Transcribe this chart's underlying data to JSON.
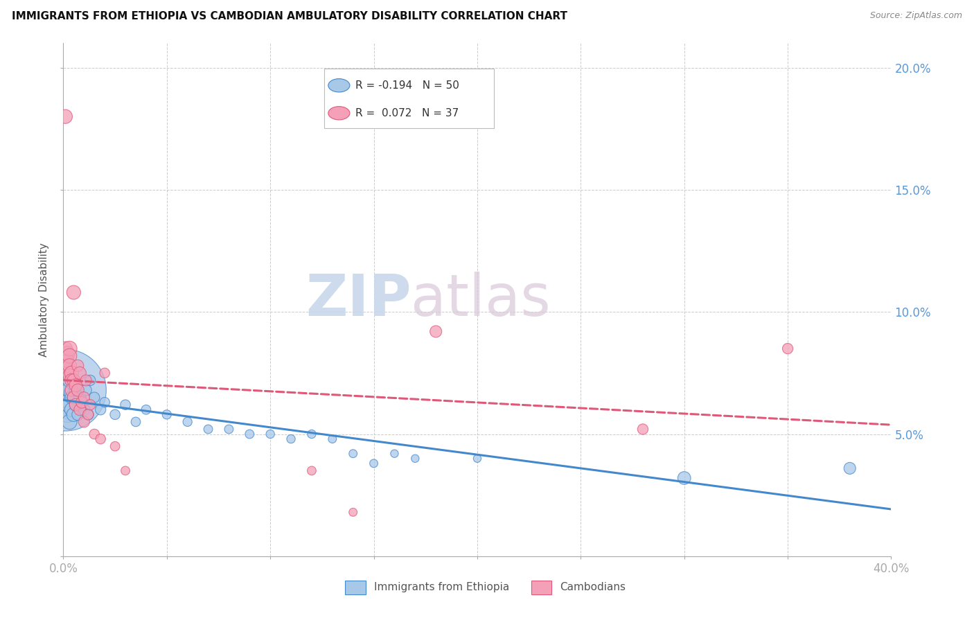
{
  "title": "IMMIGRANTS FROM ETHIOPIA VS CAMBODIAN AMBULATORY DISABILITY CORRELATION CHART",
  "source": "Source: ZipAtlas.com",
  "ylabel": "Ambulatory Disability",
  "xlim": [
    0.0,
    0.4
  ],
  "ylim": [
    0.0,
    0.21
  ],
  "color_blue": "#a8c8e8",
  "color_pink": "#f4a0b8",
  "color_blue_line": "#4488cc",
  "color_pink_line": "#e05878",
  "watermark_zip": "ZIP",
  "watermark_atlas": "atlas",
  "ethiopia_x": [
    0.001,
    0.001,
    0.001,
    0.002,
    0.002,
    0.002,
    0.002,
    0.002,
    0.003,
    0.003,
    0.003,
    0.003,
    0.004,
    0.004,
    0.004,
    0.005,
    0.005,
    0.005,
    0.006,
    0.006,
    0.007,
    0.008,
    0.009,
    0.01,
    0.011,
    0.012,
    0.013,
    0.015,
    0.018,
    0.02,
    0.025,
    0.03,
    0.035,
    0.04,
    0.05,
    0.06,
    0.07,
    0.08,
    0.09,
    0.1,
    0.11,
    0.12,
    0.13,
    0.14,
    0.15,
    0.16,
    0.17,
    0.2,
    0.3,
    0.38
  ],
  "ethiopia_y": [
    0.068,
    0.072,
    0.06,
    0.065,
    0.07,
    0.063,
    0.058,
    0.075,
    0.062,
    0.068,
    0.055,
    0.072,
    0.067,
    0.06,
    0.065,
    0.058,
    0.065,
    0.07,
    0.068,
    0.062,
    0.058,
    0.065,
    0.063,
    0.06,
    0.068,
    0.058,
    0.072,
    0.065,
    0.06,
    0.063,
    0.058,
    0.062,
    0.055,
    0.06,
    0.058,
    0.055,
    0.052,
    0.052,
    0.05,
    0.05,
    0.048,
    0.05,
    0.048,
    0.042,
    0.038,
    0.042,
    0.04,
    0.04,
    0.032,
    0.036
  ],
  "ethiopia_s": [
    1200,
    80,
    60,
    80,
    60,
    50,
    45,
    40,
    50,
    45,
    40,
    35,
    40,
    35,
    30,
    35,
    30,
    28,
    30,
    28,
    25,
    28,
    25,
    25,
    22,
    22,
    20,
    20,
    20,
    18,
    18,
    18,
    16,
    16,
    15,
    15,
    14,
    14,
    14,
    13,
    13,
    13,
    12,
    12,
    12,
    11,
    11,
    11,
    30,
    25
  ],
  "cambodian_x": [
    0.001,
    0.001,
    0.002,
    0.002,
    0.002,
    0.003,
    0.003,
    0.003,
    0.003,
    0.004,
    0.004,
    0.004,
    0.005,
    0.005,
    0.005,
    0.006,
    0.006,
    0.007,
    0.007,
    0.008,
    0.008,
    0.009,
    0.01,
    0.01,
    0.011,
    0.012,
    0.013,
    0.015,
    0.018,
    0.02,
    0.025,
    0.03,
    0.12,
    0.14,
    0.18,
    0.28,
    0.35
  ],
  "cambodian_y": [
    0.18,
    0.085,
    0.083,
    0.076,
    0.08,
    0.085,
    0.082,
    0.078,
    0.074,
    0.075,
    0.072,
    0.068,
    0.108,
    0.072,
    0.065,
    0.07,
    0.062,
    0.068,
    0.078,
    0.075,
    0.06,
    0.063,
    0.065,
    0.055,
    0.072,
    0.058,
    0.062,
    0.05,
    0.048,
    0.075,
    0.045,
    0.035,
    0.035,
    0.018,
    0.092,
    0.052,
    0.085
  ],
  "cambodian_s": [
    35,
    35,
    38,
    35,
    32,
    40,
    38,
    35,
    32,
    35,
    32,
    30,
    35,
    30,
    28,
    30,
    28,
    28,
    25,
    28,
    25,
    25,
    22,
    22,
    22,
    20,
    20,
    18,
    18,
    18,
    16,
    14,
    14,
    12,
    25,
    20,
    20
  ]
}
